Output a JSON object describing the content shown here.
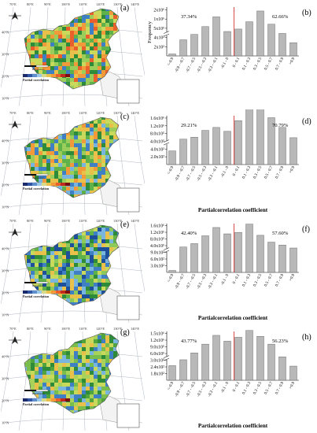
{
  "figure": {
    "rows": [
      {
        "map": {
          "panel_label": "(a)",
          "lon_ticks": [
            "70°E",
            "80°E",
            "90°E",
            "100°E",
            "110°E",
            "120°E",
            "130°E",
            "140°E"
          ],
          "lat_ticks": [
            "40°N",
            "30°N",
            "20°N",
            "10°N"
          ],
          "legend_title": "Partial correlation",
          "scale_label": "Kilometers"
        },
        "chart_label": "(b)"
      },
      {
        "map": {
          "panel_label": "(c)",
          "lon_ticks": [
            "70°E",
            "80°E",
            "90°E",
            "100°E",
            "110°E",
            "120°E",
            "130°E",
            "140°E"
          ],
          "lat_ticks": [
            "40°N",
            "30°N",
            "20°N",
            "10°N"
          ],
          "legend_title": "Partial correlation",
          "scale_label": "Kilometers"
        },
        "chart_label": "(d)"
      },
      {
        "map": {
          "panel_label": "(e)",
          "lon_ticks": [
            "70°E",
            "80°E",
            "90°E",
            "100°E",
            "110°E",
            "120°E",
            "130°E",
            "140°E"
          ],
          "lat_ticks": [
            "40°N",
            "30°N",
            "20°N",
            "10°N"
          ],
          "legend_title": "Partial correlation",
          "scale_label": "Kilometers"
        },
        "chart_label": "(f)"
      },
      {
        "map": {
          "panel_label": "(g)",
          "lon_ticks": [
            "70°E",
            "80°E",
            "90°E",
            "100°E",
            "110°E",
            "120°E",
            "130°E",
            "140°E"
          ],
          "lat_ticks": [
            "40°N",
            "30°N",
            "20°N",
            "10°N"
          ],
          "legend_title": "Partial correlation",
          "scale_label": "Kilometers"
        },
        "chart_label": "(h)"
      }
    ]
  },
  "chart_data": [
    {
      "type": "bar",
      "panel": "(b)",
      "categories": [
        "<-0.9",
        "-0.9 - -0.7",
        "-0.7 - -0.5",
        "-0.5 - -0.3",
        "-0.3 - -0.1",
        "-0.1 - 0",
        "0 - 0.1",
        "0.1 - 0.3",
        "0.3 - 0.5",
        "0.5 - 0.7",
        "0.7 - 0.9",
        ">0.9"
      ],
      "values": [
        40,
        330,
        440,
        600,
        800,
        500,
        550,
        700,
        920,
        650,
        460,
        270
      ],
      "ylabel": "Frequency",
      "xlabel": "",
      "y_ticks": [
        "2x10²",
        "4x10²",
        "5x10⁵",
        "1x10⁶",
        "2x10⁶"
      ],
      "axis_break": true,
      "left_pct": "37.34%",
      "right_pct": "62.66%",
      "divider_category": "0 - 0.1"
    },
    {
      "type": "bar",
      "panel": "(d)",
      "categories": [
        "<-0.9",
        "-0.9 - -0.7",
        "-0.7 - -0.5",
        "-0.5 - -0.3",
        "-0.3 - -0.1",
        "-0.1 - 0",
        "0 - 0.1",
        "0.1 - 0.3",
        "0.3 - 0.5",
        "0.5 - 0.7",
        "0.7 - 0.9",
        ">0.9"
      ],
      "values": [
        280,
        520,
        560,
        700,
        760,
        680,
        900,
        1140,
        1150,
        960,
        760,
        550
      ],
      "ylabel": "",
      "xlabel": "Partialcorrelation coefficient",
      "y_ticks": [
        "2.0x10²",
        "4.0x10²",
        "4.0x10⁵",
        "8.0x10⁵",
        "1.2x10⁶",
        "1.6x10⁶"
      ],
      "axis_break": true,
      "left_pct": "29.21%",
      "right_pct": "70.79%",
      "divider_category": "0 - 0.1"
    },
    {
      "type": "bar",
      "panel": "(f)",
      "categories": [
        "<-0.9",
        "-0.9 - -0.7",
        "-0.7 - -0.5",
        "-0.5 - -0.3",
        "-0.3 - -0.1",
        "-0.1 - 0",
        "0 - 0.1",
        "0.1 - 0.3",
        "0.3 - 0.5",
        "0.5 - 0.7",
        "0.7 - 0.9",
        ">0.9"
      ],
      "values": [
        40,
        520,
        590,
        750,
        920,
        790,
        820,
        990,
        760,
        620,
        560,
        500
      ],
      "ylabel": "",
      "xlabel": "Partialcorrelation coefficient",
      "y_ticks": [
        "3.0x10²",
        "6.0x10²",
        "9.0x10²",
        "4.0x10⁵",
        "8.0x10⁵",
        "1.2x10⁶",
        "1.6x10⁶"
      ],
      "axis_break": true,
      "left_pct": "42.40%",
      "right_pct": "57.60%",
      "divider_category": "0 - 0.1"
    },
    {
      "type": "bar",
      "panel": "(h)",
      "categories": [
        "<-0.9",
        "-0.9 - -0.7",
        "-0.7 - -0.5",
        "-0.5 - -0.3",
        "-0.3 - -0.1",
        "-0.1 - 0",
        "0 - 0.1",
        "0.1 - 0.3",
        "0.3 - 0.5",
        "0.5 - 0.7",
        "0.7 - 0.9",
        ">0.9"
      ],
      "values": [
        300,
        420,
        560,
        740,
        920,
        800,
        880,
        1020,
        900,
        740,
        480,
        290
      ],
      "ylabel": "",
      "xlabel": "Partialcorrelation coefficient",
      "y_ticks": [
        "1.8x10²",
        "2.4x10²",
        "3.0x10⁵",
        "6.0x10⁵",
        "9.0x10⁵",
        "1.2x10⁶",
        "1.5x10⁶"
      ],
      "axis_break": true,
      "left_pct": "43.77%",
      "right_pct": "56.23%",
      "divider_category": "0 - 0.1"
    }
  ]
}
